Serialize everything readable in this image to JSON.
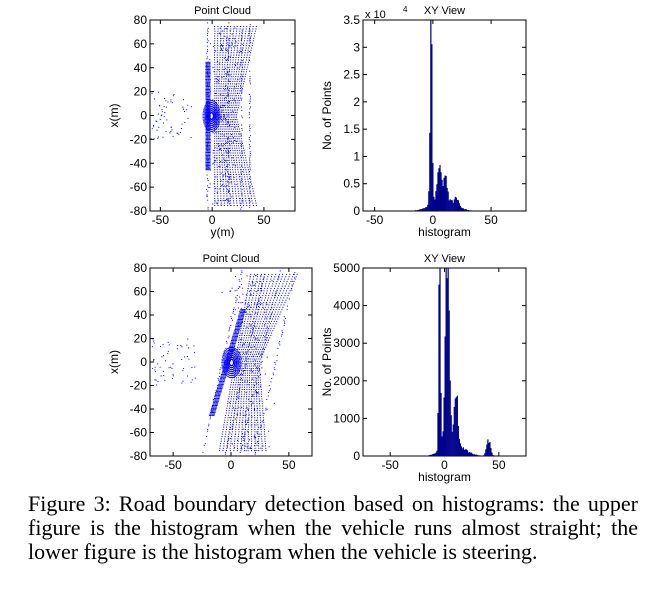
{
  "caption": "Figure 3: Road boundary detection based on histograms: the upper figure is the histogram when the vehicle runs almost straight; the lower figure is the histogram when the vehicle is steering.",
  "colors": {
    "points": "#0000ff",
    "bars": "#00008b",
    "axis": "#000000"
  },
  "chart_data": [
    {
      "type": "scatter",
      "title": "Point Cloud",
      "xlabel": "y(m)",
      "ylabel": "x(m)",
      "xlim": [
        -60,
        80
      ],
      "ylim": [
        -80,
        80
      ],
      "xticks": [
        -50,
        0,
        50
      ],
      "yticks": [
        -80,
        -60,
        -40,
        -20,
        0,
        20,
        40,
        60,
        80
      ],
      "grid": false,
      "pattern": "straight"
    },
    {
      "type": "bar",
      "title": "XY View",
      "xlabel": "histogram",
      "ylabel": "No. of Points",
      "exponent_label": "x 10",
      "exponent_power": "4",
      "xlim": [
        -60,
        80
      ],
      "ylim": [
        0,
        3.5
      ],
      "xticks": [
        -50,
        0,
        50
      ],
      "yticks": [
        0,
        0.5,
        1,
        1.5,
        2,
        2.5,
        3,
        3.5
      ],
      "peaks": [
        {
          "x": -2,
          "y": 3.3
        },
        {
          "x": 5,
          "y": 0.55
        },
        {
          "x": 10,
          "y": 0.4
        },
        {
          "x": 20,
          "y": 0.15
        }
      ]
    },
    {
      "type": "scatter",
      "title": "Point Cloud",
      "xlabel": "",
      "ylabel": "x(m)",
      "xlim": [
        -70,
        70
      ],
      "ylim": [
        -80,
        80
      ],
      "xticks": [
        -50,
        0,
        50
      ],
      "yticks": [
        -80,
        -60,
        -40,
        -20,
        0,
        20,
        40,
        60,
        80
      ],
      "grid": false,
      "pattern": "steering"
    },
    {
      "type": "bar",
      "title": "XY View",
      "xlabel": "histogram",
      "ylabel": "No. of Points",
      "xlim": [
        -75,
        75
      ],
      "ylim": [
        0,
        5000
      ],
      "xticks": [
        -50,
        0,
        50
      ],
      "yticks": [
        0,
        1000,
        2000,
        3000,
        4000,
        5000
      ],
      "peaks": [
        {
          "x": -5,
          "y": 4900
        },
        {
          "x": 2,
          "y": 4850
        },
        {
          "x": 10,
          "y": 1400
        },
        {
          "x": 40,
          "y": 400
        }
      ]
    }
  ]
}
